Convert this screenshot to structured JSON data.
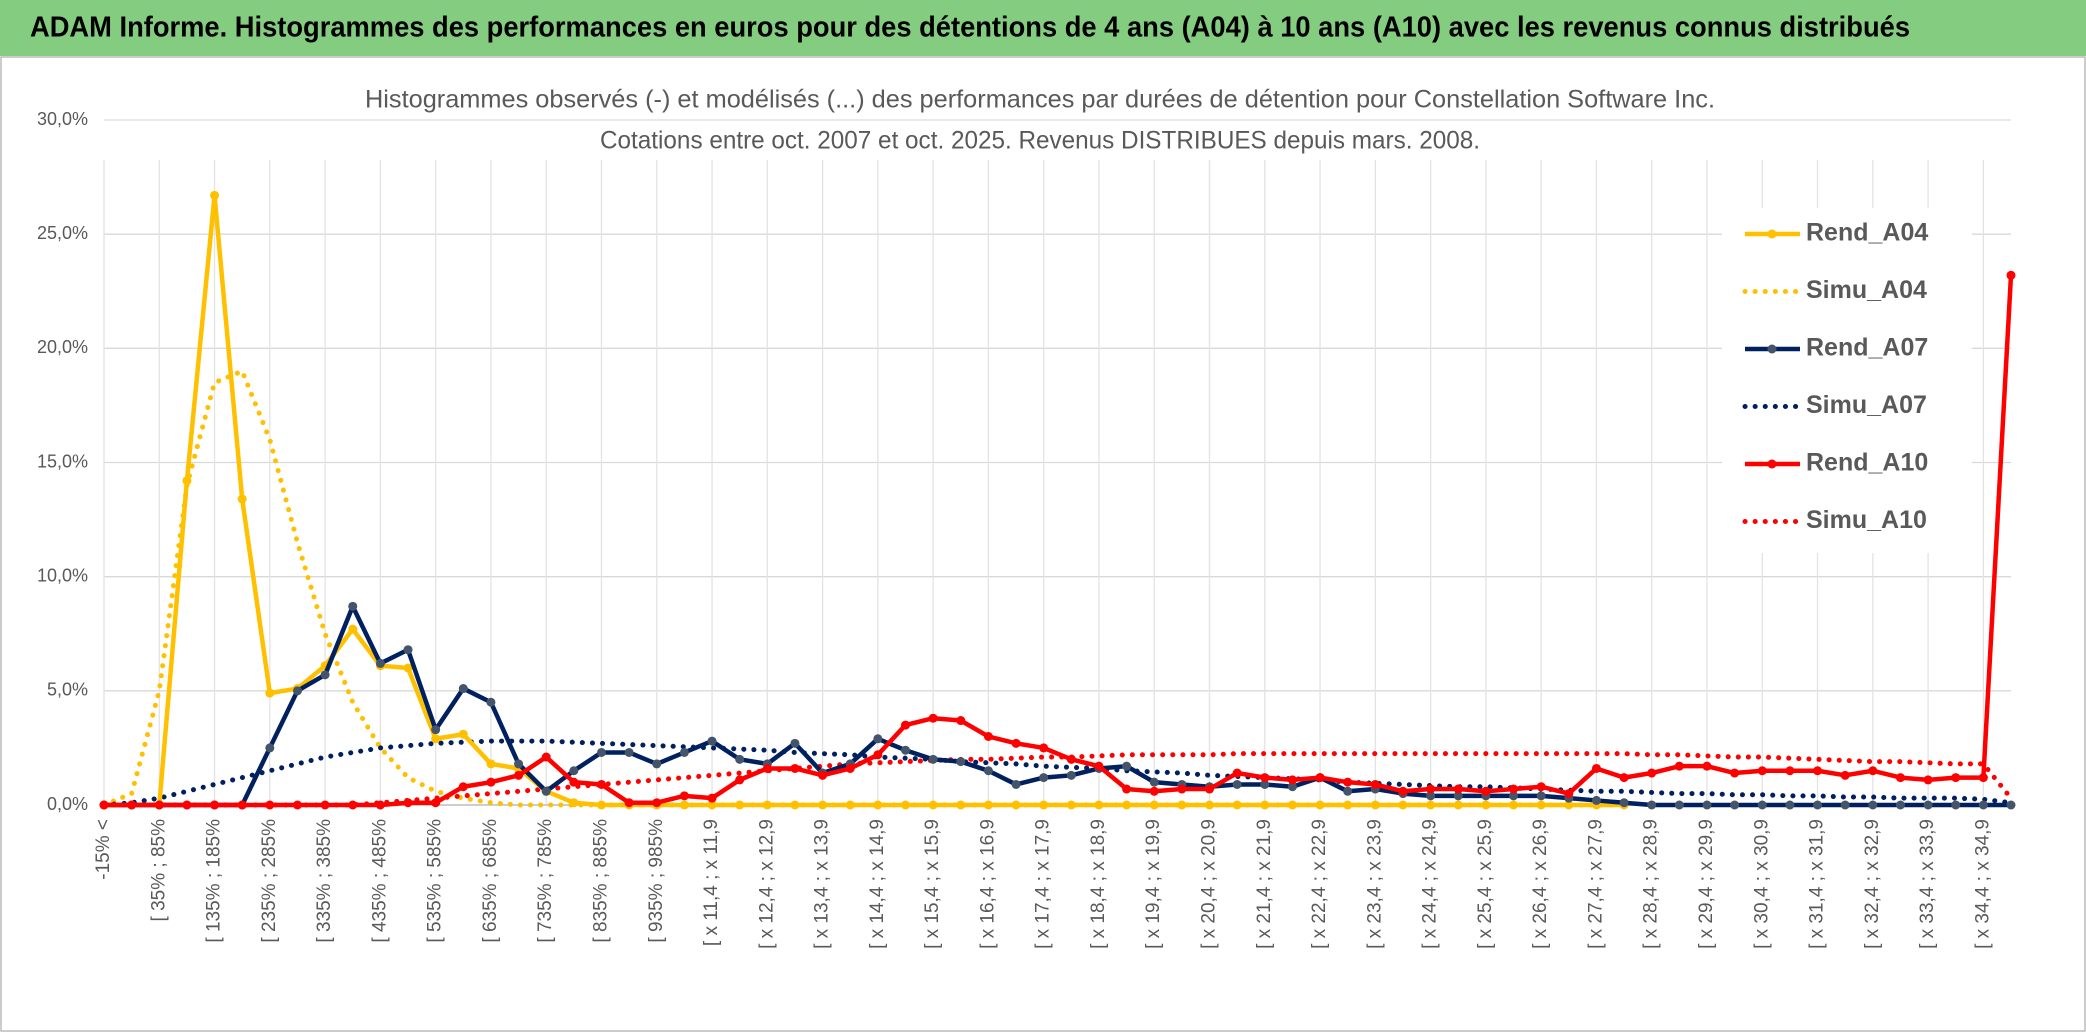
{
  "header": {
    "title": "ADAM Informe. Histogrammes des performances en euros pour des détentions de 4 ans (A04) à 10 ans (A10) avec les revenus connus distribués"
  },
  "chart_data": {
    "type": "line",
    "title": "Histogrammes observés (-) et modélisés (...) des performances par durées de détention pour Constellation Software Inc.",
    "subtitle": "Cotations entre oct. 2007 et oct. 2025. Revenus DISTRIBUES depuis mars. 2008.",
    "categories": [
      "-15% <",
      null,
      "[ 35% ; 85%",
      null,
      "[ 135% ; 185%",
      null,
      "[ 235% ; 285%",
      null,
      "[ 335% ; 385%",
      null,
      "[ 435% ; 485%",
      null,
      "[ 535% ; 585%",
      null,
      "[ 635% ; 685%",
      null,
      "[ 735% ; 785%",
      null,
      "[ 835% ; 885%",
      null,
      "[ 935% ; 985%",
      null,
      "[ x 11,4 ; x 11,9",
      null,
      "[ x 12,4 ; x 12,9",
      null,
      "[ x 13,4 ; x 13,9",
      null,
      "[ x 14,4 ; x 14,9",
      null,
      "[ x 15,4 ; x 15,9",
      null,
      "[ x 16,4 ; x 16,9",
      null,
      "[ x 17,4 ; x 17,9",
      null,
      "[ x 18,4 ; x 18,9",
      null,
      "[ x 19,4 ; x 19,9",
      null,
      "[ x 20,4 ; x 20,9",
      null,
      "[ x 21,4 ; x 21,9",
      null,
      "[ x 22,4 ; x 22,9",
      null,
      "[ x 23,4 ; x 23,9",
      null,
      "[ x 24,4 ; x 24,9",
      null,
      "[ x 25,4 ; x 25,9",
      null,
      "[ x 26,4 ; x 26,9",
      null,
      "[ x 27,4 ; x 27,9",
      null,
      "[ x 28,4 ; x 28,9",
      null,
      "[ x 29,4 ; x 29,9",
      null,
      "[ x 30,4 ; x 30,9",
      null,
      "[ x 31,4 ; x 31,9",
      null,
      "[ x 32,4 ; x 32,9",
      null,
      "[ x 33,4 ; x 33,9",
      null,
      "[ x 34,4 ; x 34,9",
      null
    ],
    "series": [
      {
        "name": "Rend_A04",
        "color": "#ffc000",
        "style": "solid",
        "markers": true,
        "values": [
          0,
          0,
          0,
          14.2,
          26.7,
          13.4,
          4.9,
          5.1,
          6.1,
          7.7,
          6.1,
          6.0,
          2.9,
          3.1,
          1.8,
          1.6,
          0.6,
          0.1,
          0,
          0,
          0,
          0,
          0,
          0,
          0,
          0,
          0,
          0,
          0,
          0,
          0,
          0,
          0,
          0,
          0,
          0,
          0,
          0,
          0,
          0,
          0,
          0,
          0,
          0,
          0,
          0,
          0,
          0,
          0,
          0,
          0,
          0,
          0,
          0,
          0,
          0,
          null,
          null,
          null,
          null,
          null,
          null,
          null,
          null,
          null,
          null,
          null,
          null,
          null,
          null
        ]
      },
      {
        "name": "Simu_A04",
        "color": "#ffc000",
        "style": "dotted",
        "markers": false,
        "values": [
          0,
          0.5,
          5,
          14,
          18.5,
          19,
          16,
          11.5,
          7.5,
          4.5,
          2.5,
          1.2,
          0.6,
          0.3,
          0.1,
          0,
          0,
          0,
          0,
          0,
          0,
          0,
          0,
          0,
          0,
          0,
          0,
          0,
          0,
          0,
          0,
          0,
          0,
          0,
          0,
          0,
          0,
          0,
          0,
          0,
          0,
          0,
          0,
          0,
          0,
          0,
          0,
          0,
          0,
          0,
          0,
          0,
          0,
          0,
          0,
          0,
          null,
          null,
          null,
          null,
          null,
          null,
          null,
          null,
          null,
          null,
          null,
          null,
          null,
          null
        ]
      },
      {
        "name": "Rend_A07",
        "color": "#002060",
        "style": "solid",
        "markers": true,
        "values": [
          0,
          0,
          0,
          0,
          0,
          0,
          2.5,
          5.0,
          5.7,
          8.7,
          6.2,
          6.8,
          3.3,
          5.1,
          4.5,
          1.8,
          0.6,
          1.5,
          2.3,
          2.3,
          1.8,
          2.3,
          2.8,
          2.0,
          1.8,
          2.7,
          1.4,
          1.8,
          2.9,
          2.4,
          2.0,
          1.9,
          1.5,
          0.9,
          1.2,
          1.3,
          1.6,
          1.7,
          1.0,
          0.9,
          0.8,
          0.9,
          0.9,
          0.8,
          1.2,
          0.6,
          0.7,
          0.5,
          0.4,
          0.4,
          0.4,
          0.4,
          0.4,
          0.3,
          0.2,
          0.1,
          0,
          0,
          0,
          0,
          0,
          0,
          0,
          0,
          0,
          0,
          0,
          0,
          0,
          0
        ]
      },
      {
        "name": "Simu_A07",
        "color": "#002060",
        "style": "dotted",
        "markers": false,
        "values": [
          0,
          0.1,
          0.3,
          0.6,
          0.9,
          1.2,
          1.5,
          1.8,
          2.1,
          2.3,
          2.5,
          2.6,
          2.7,
          2.75,
          2.8,
          2.8,
          2.8,
          2.75,
          2.7,
          2.65,
          2.6,
          2.55,
          2.5,
          2.45,
          2.4,
          2.3,
          2.25,
          2.2,
          2.1,
          2.05,
          2.0,
          1.9,
          1.85,
          1.8,
          1.7,
          1.65,
          1.6,
          1.5,
          1.45,
          1.4,
          1.3,
          1.25,
          1.2,
          1.15,
          1.1,
          1.0,
          0.95,
          0.9,
          0.85,
          0.8,
          0.8,
          0.75,
          0.7,
          0.65,
          0.6,
          0.6,
          0.55,
          0.5,
          0.5,
          0.45,
          0.45,
          0.4,
          0.4,
          0.35,
          0.35,
          0.3,
          0.3,
          0.3,
          0.25,
          0.1
        ]
      },
      {
        "name": "Rend_A10",
        "color": "#ff0000",
        "style": "solid",
        "markers": true,
        "values": [
          0,
          0,
          0,
          0,
          0,
          0,
          0,
          0,
          0,
          0,
          0,
          0.1,
          0.1,
          0.8,
          1.0,
          1.3,
          2.1,
          1.0,
          0.9,
          0.1,
          0.1,
          0.4,
          0.3,
          1.1,
          1.6,
          1.6,
          1.3,
          1.6,
          2.2,
          3.5,
          3.8,
          3.7,
          3.0,
          2.7,
          2.5,
          2.0,
          1.7,
          0.7,
          0.6,
          0.7,
          0.7,
          1.4,
          1.2,
          1.1,
          1.2,
          1.0,
          0.9,
          0.6,
          0.7,
          0.7,
          0.6,
          0.7,
          0.8,
          0.5,
          1.6,
          1.2,
          1.4,
          1.7,
          1.7,
          1.4,
          1.5,
          1.5,
          1.5,
          1.3,
          1.5,
          1.2,
          1.1,
          1.2,
          1.2,
          23.2
        ]
      },
      {
        "name": "Simu_A10",
        "color": "#ff0000",
        "style": "dotted",
        "markers": false,
        "values": [
          0,
          0,
          0,
          0,
          0,
          0,
          0,
          0,
          0,
          0,
          0.1,
          0.2,
          0.3,
          0.4,
          0.5,
          0.6,
          0.7,
          0.8,
          0.9,
          1.0,
          1.1,
          1.2,
          1.3,
          1.4,
          1.5,
          1.6,
          1.7,
          1.8,
          1.85,
          1.9,
          1.95,
          2.0,
          2.0,
          2.05,
          2.1,
          2.1,
          2.15,
          2.2,
          2.2,
          2.2,
          2.2,
          2.25,
          2.25,
          2.25,
          2.25,
          2.25,
          2.25,
          2.25,
          2.25,
          2.25,
          2.25,
          2.25,
          2.25,
          2.25,
          2.25,
          2.25,
          2.2,
          2.2,
          2.15,
          2.1,
          2.1,
          2.05,
          2.0,
          1.95,
          1.9,
          1.9,
          1.85,
          1.8,
          1.8,
          0.3
        ]
      }
    ],
    "ylim": [
      0,
      30
    ],
    "yticks": [
      {
        "value": 0,
        "label": "0,0%"
      },
      {
        "value": 5,
        "label": "5,0%"
      },
      {
        "value": 10,
        "label": "10,0%"
      },
      {
        "value": 15,
        "label": "15,0%"
      },
      {
        "value": 20,
        "label": "20,0%"
      },
      {
        "value": 25,
        "label": "25,0%"
      },
      {
        "value": 30,
        "label": "30,0%"
      }
    ],
    "grid": true,
    "legend": "right"
  }
}
